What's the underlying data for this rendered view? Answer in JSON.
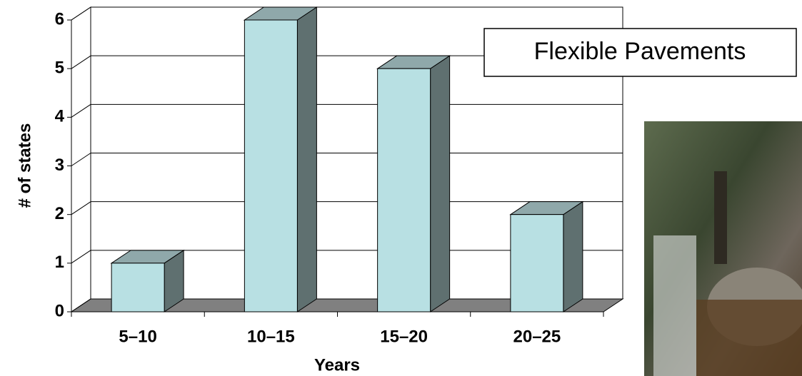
{
  "chart_data": {
    "type": "bar",
    "annotation": "Flexible Pavements",
    "x_label": "Years",
    "y_label": "# of states",
    "categories": [
      "5–10",
      "10–15",
      "15–20",
      "20–25"
    ],
    "values": [
      1,
      6,
      5,
      2
    ],
    "color": "#b8e0e3",
    "ylim": [
      0,
      6
    ],
    "yticks": [
      0,
      1,
      2,
      3,
      4,
      5,
      6
    ],
    "grid": true
  }
}
